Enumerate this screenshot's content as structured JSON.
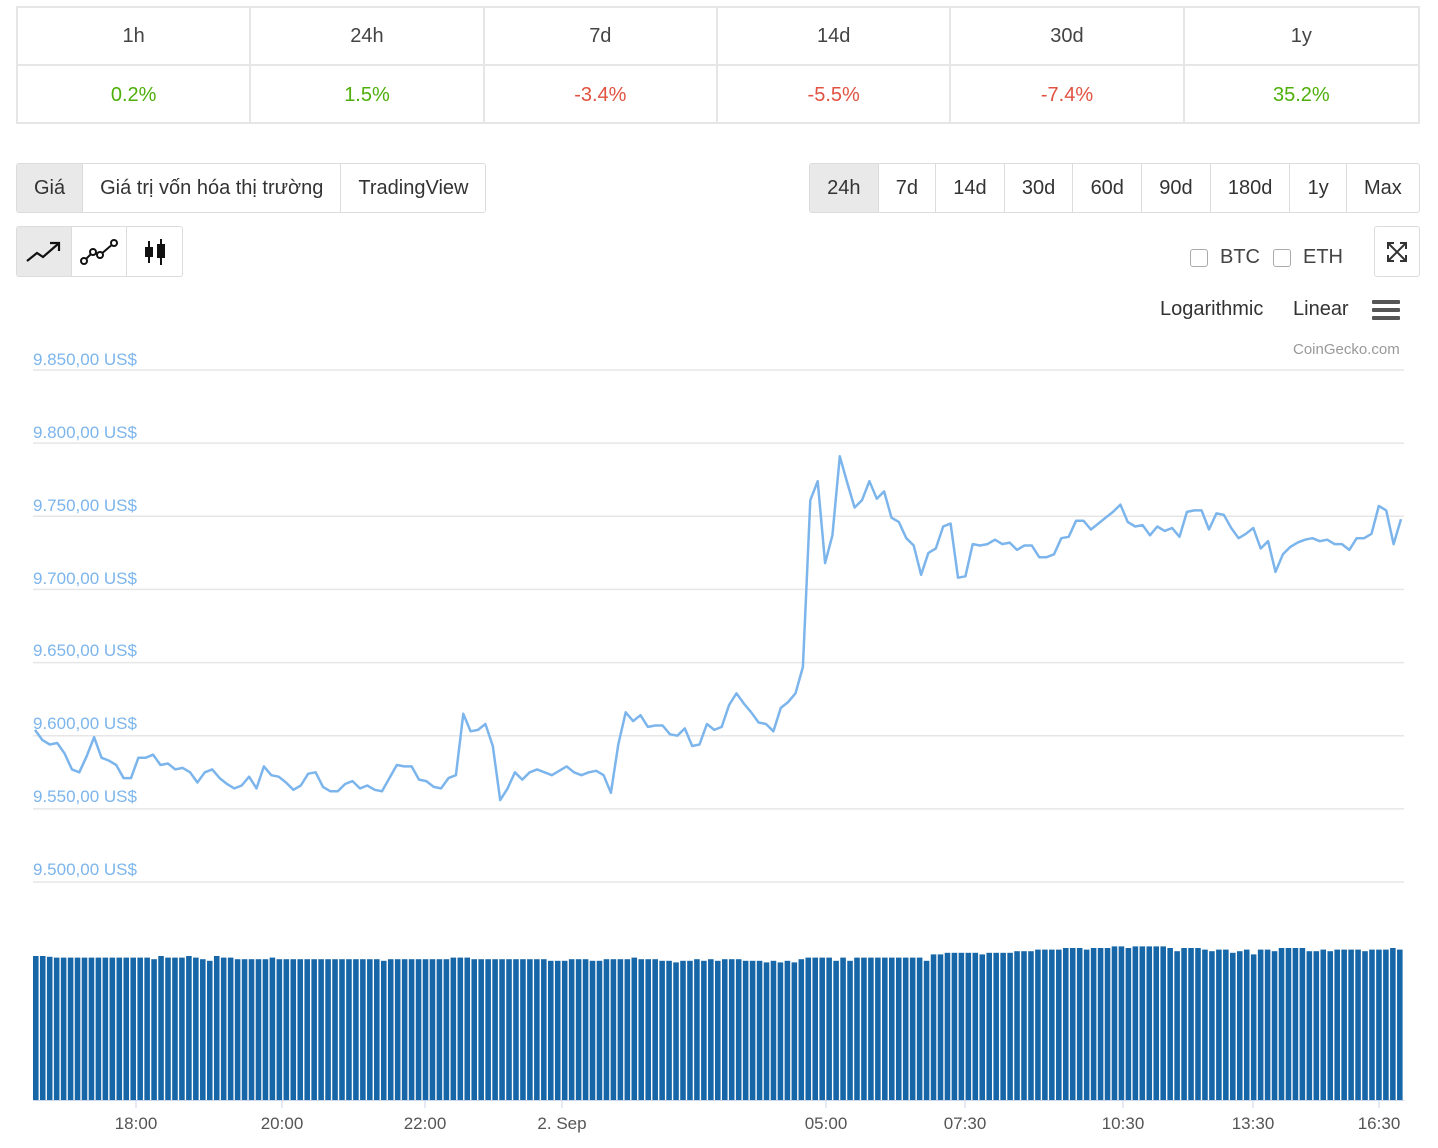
{
  "change_table": {
    "periods": [
      "1h",
      "24h",
      "7d",
      "14d",
      "30d",
      "1y"
    ],
    "values": [
      {
        "text": "0.2%",
        "sign": "pos"
      },
      {
        "text": "1.5%",
        "sign": "pos"
      },
      {
        "text": "-3.4%",
        "sign": "neg"
      },
      {
        "text": "-5.5%",
        "sign": "neg"
      },
      {
        "text": "-7.4%",
        "sign": "neg"
      },
      {
        "text": "35.2%",
        "sign": "pos"
      }
    ]
  },
  "metric_tabs": {
    "items": [
      "Giá",
      "Giá trị vốn hóa thị trường",
      "TradingView"
    ],
    "active": "Giá"
  },
  "range_tabs": {
    "items": [
      "24h",
      "7d",
      "14d",
      "30d",
      "60d",
      "90d",
      "180d",
      "1y",
      "Max"
    ],
    "active": "24h"
  },
  "chart_type_buttons": [
    "line-chart-icon",
    "line-points-chart-icon",
    "candlestick-chart-icon"
  ],
  "compare": {
    "btc_label": "BTC",
    "eth_label": "ETH"
  },
  "scale": {
    "log_label": "Logarithmic",
    "linear_label": "Linear"
  },
  "credit": "CoinGecko.com",
  "colors": {
    "price_line": "#7cb5ec",
    "volume_bar": "#1666a8",
    "positive": "#4eaf0a",
    "negative": "#e15241"
  },
  "chart_data": {
    "type": "line",
    "ylim": [
      9500,
      9850
    ],
    "ytick_values": [
      9850,
      9800,
      9750,
      9700,
      9650,
      9600,
      9550,
      9500
    ],
    "ytick_labels": [
      "9.850,00 US$",
      "9.800,00 US$",
      "9.750,00 US$",
      "9.700,00 US$",
      "9.650,00 US$",
      "9.600,00 US$",
      "9.550,00 US$",
      "9.500,00 US$"
    ],
    "xtick_labels": [
      "18:00",
      "20:00",
      "22:00",
      "2. Sep",
      "05:00",
      "07:30",
      "10:30",
      "13:30",
      "16:30"
    ],
    "grid": true,
    "series": [
      {
        "values": [
          9604,
          9597,
          9594,
          9595,
          9588,
          9577,
          9575,
          9586,
          9599,
          9585,
          9583,
          9580,
          9571,
          9571,
          9585,
          9585,
          9587,
          9580,
          9581,
          9577,
          9578,
          9575,
          9568,
          9575,
          9577,
          9571,
          9567,
          9564,
          9566,
          9572,
          9564,
          9579,
          9573,
          9572,
          9568,
          9563,
          9566,
          9574,
          9575,
          9565,
          9562,
          9562,
          9567,
          9569,
          9564,
          9566,
          9563,
          9562,
          9571,
          9580,
          9579,
          9579,
          9570,
          9569,
          9565,
          9564,
          9571,
          9573,
          9615,
          9603,
          9604,
          9608,
          9593,
          9556,
          9564,
          9575,
          9570,
          9575,
          9577,
          9575,
          9573,
          9576,
          9579,
          9575,
          9573,
          9575,
          9576,
          9573,
          9561,
          9594,
          9616,
          9610,
          9614,
          9606,
          9607,
          9607,
          9601,
          9600,
          9605,
          9593,
          9594,
          9608,
          9604,
          9606,
          9621,
          9629,
          9622,
          9616,
          9609,
          9608,
          9603,
          9619,
          9623,
          9629,
          9647,
          9761,
          9774,
          9718,
          9737,
          9791,
          9773,
          9756,
          9761,
          9774,
          9762,
          9767,
          9749,
          9746,
          9735,
          9730,
          9710,
          9725,
          9728,
          9743,
          9745,
          9708,
          9709,
          9731,
          9730,
          9731,
          9734,
          9731,
          9732,
          9727,
          9730,
          9730,
          9722,
          9722,
          9724,
          9735,
          9736,
          9747,
          9747,
          9741,
          9745,
          9749,
          9753,
          9758,
          9746,
          9743,
          9744,
          9737,
          9743,
          9740,
          9742,
          9736,
          9753,
          9754,
          9754,
          9741,
          9752,
          9751,
          9742,
          9735,
          9738,
          9742,
          9728,
          9733,
          9712,
          9724,
          9729,
          9732,
          9734,
          9735,
          9733,
          9734,
          9731,
          9731,
          9727,
          9735,
          9735,
          9738,
          9757,
          9754,
          9731,
          9748
        ]
      }
    ],
    "volume": {
      "values": [
        0.9,
        0.9,
        0.895,
        0.89,
        0.89,
        0.89,
        0.89,
        0.89,
        0.89,
        0.89,
        0.89,
        0.89,
        0.89,
        0.89,
        0.89,
        0.89,
        0.89,
        0.88,
        0.9,
        0.89,
        0.89,
        0.89,
        0.9,
        0.89,
        0.88,
        0.87,
        0.9,
        0.89,
        0.89,
        0.88,
        0.88,
        0.88,
        0.88,
        0.88,
        0.89,
        0.88,
        0.88,
        0.88,
        0.88,
        0.88,
        0.88,
        0.88,
        0.88,
        0.88,
        0.88,
        0.88,
        0.88,
        0.88,
        0.88,
        0.88,
        0.87,
        0.88,
        0.88,
        0.88,
        0.88,
        0.88,
        0.88,
        0.88,
        0.88,
        0.88,
        0.89,
        0.89,
        0.89,
        0.88,
        0.88,
        0.88,
        0.88,
        0.88,
        0.88,
        0.88,
        0.88,
        0.88,
        0.88,
        0.88,
        0.87,
        0.87,
        0.87,
        0.88,
        0.88,
        0.88,
        0.87,
        0.87,
        0.88,
        0.88,
        0.88,
        0.88,
        0.89,
        0.88,
        0.88,
        0.88,
        0.87,
        0.87,
        0.86,
        0.87,
        0.87,
        0.88,
        0.87,
        0.88,
        0.87,
        0.88,
        0.88,
        0.88,
        0.87,
        0.87,
        0.87,
        0.86,
        0.87,
        0.86,
        0.87,
        0.86,
        0.88,
        0.89,
        0.89,
        0.89,
        0.89,
        0.87,
        0.89,
        0.87,
        0.89,
        0.89,
        0.89,
        0.89,
        0.89,
        0.89,
        0.89,
        0.89,
        0.89,
        0.89,
        0.87,
        0.91,
        0.91,
        0.92,
        0.92,
        0.92,
        0.92,
        0.92,
        0.91,
        0.92,
        0.92,
        0.92,
        0.92,
        0.93,
        0.93,
        0.93,
        0.94,
        0.94,
        0.94,
        0.94,
        0.95,
        0.95,
        0.95,
        0.94,
        0.95,
        0.95,
        0.95,
        0.96,
        0.96,
        0.95,
        0.96,
        0.96,
        0.96,
        0.96,
        0.96,
        0.95,
        0.93,
        0.95,
        0.95,
        0.95,
        0.94,
        0.93,
        0.94,
        0.94,
        0.92,
        0.93,
        0.94,
        0.91,
        0.94,
        0.94,
        0.93,
        0.95,
        0.95,
        0.95,
        0.95,
        0.93,
        0.93,
        0.94,
        0.93,
        0.94,
        0.94,
        0.94,
        0.94,
        0.93,
        0.94,
        0.94,
        0.94,
        0.95,
        0.94
      ]
    }
  }
}
